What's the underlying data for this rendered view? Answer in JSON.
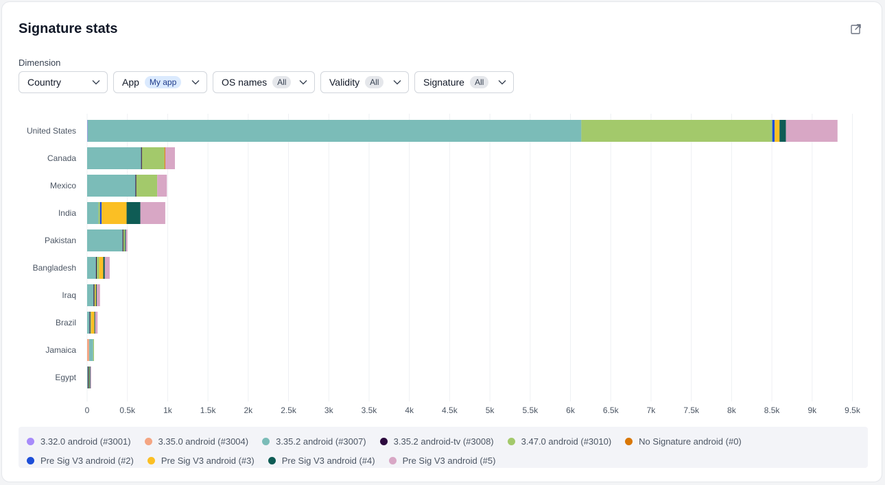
{
  "header": {
    "title": "Signature stats"
  },
  "filters": {
    "dimension_label": "Dimension",
    "dimension_value": "Country",
    "app": {
      "label": "App",
      "value": "My app"
    },
    "os": {
      "label": "OS names",
      "value": "All"
    },
    "validity": {
      "label": "Validity",
      "value": "All"
    },
    "signature": {
      "label": "Signature",
      "value": "All"
    }
  },
  "chart_data": {
    "type": "bar",
    "orientation": "horizontal",
    "stacked": true,
    "categories": [
      "United States",
      "Canada",
      "Mexico",
      "India",
      "Pakistan",
      "Bangladesh",
      "Iraq",
      "Brazil",
      "Jamaica",
      "Egypt"
    ],
    "x_ticks": [
      "0",
      "0.5k",
      "1k",
      "1.5k",
      "2k",
      "2.5k",
      "3k",
      "3.5k",
      "4k",
      "4.5k",
      "5k",
      "5.5k",
      "6k",
      "6.5k",
      "7k",
      "7.5k",
      "8k",
      "8.5k",
      "9k",
      "9.5k"
    ],
    "xlim": [
      0,
      9500
    ],
    "grid": "vertical",
    "legend_position": "bottom",
    "series": [
      {
        "name": "3.32.0 android (#3001)",
        "color": "#a78bfa",
        "values": [
          5,
          0,
          0,
          0,
          0,
          0,
          0,
          0,
          0,
          0
        ]
      },
      {
        "name": "3.35.0 android (#3004)",
        "color": "#f4a582",
        "values": [
          0,
          0,
          0,
          0,
          0,
          0,
          0,
          0,
          25,
          0
        ]
      },
      {
        "name": "3.35.2 android (#3007)",
        "color": "#7bbcb8",
        "values": [
          6130,
          670,
          600,
          140,
          440,
          110,
          80,
          30,
          50,
          10
        ]
      },
      {
        "name": "3.35.2 android-tv (#3008)",
        "color": "#2d0a3e",
        "values": [
          0,
          10,
          10,
          0,
          10,
          10,
          10,
          10,
          0,
          10
        ]
      },
      {
        "name": "3.47.0 android (#3010)",
        "color": "#a3c96b",
        "values": [
          2370,
          280,
          260,
          20,
          20,
          30,
          10,
          10,
          10,
          10
        ]
      },
      {
        "name": "No Signature android (#0)",
        "color": "#d97706",
        "values": [
          0,
          10,
          0,
          0,
          0,
          0,
          0,
          0,
          0,
          0
        ]
      },
      {
        "name": "Pre Sig V3 android (#2)",
        "color": "#1d4ed8",
        "values": [
          30,
          0,
          0,
          20,
          0,
          0,
          0,
          0,
          0,
          0
        ]
      },
      {
        "name": "Pre Sig V3 android (#3)",
        "color": "#fbbf24",
        "values": [
          60,
          0,
          0,
          310,
          0,
          50,
          10,
          40,
          0,
          0
        ]
      },
      {
        "name": "Pre Sig V3 android (#4)",
        "color": "#0f5c55",
        "values": [
          80,
          0,
          0,
          170,
          10,
          20,
          10,
          10,
          0,
          10
        ]
      },
      {
        "name": "Pre Sig V3 android (#5)",
        "color": "#d8a7c5",
        "values": [
          640,
          120,
          120,
          310,
          20,
          60,
          40,
          30,
          0,
          10
        ]
      }
    ]
  },
  "icons": {
    "expand": "open-external-icon",
    "chevron": "chevron-down-icon"
  }
}
